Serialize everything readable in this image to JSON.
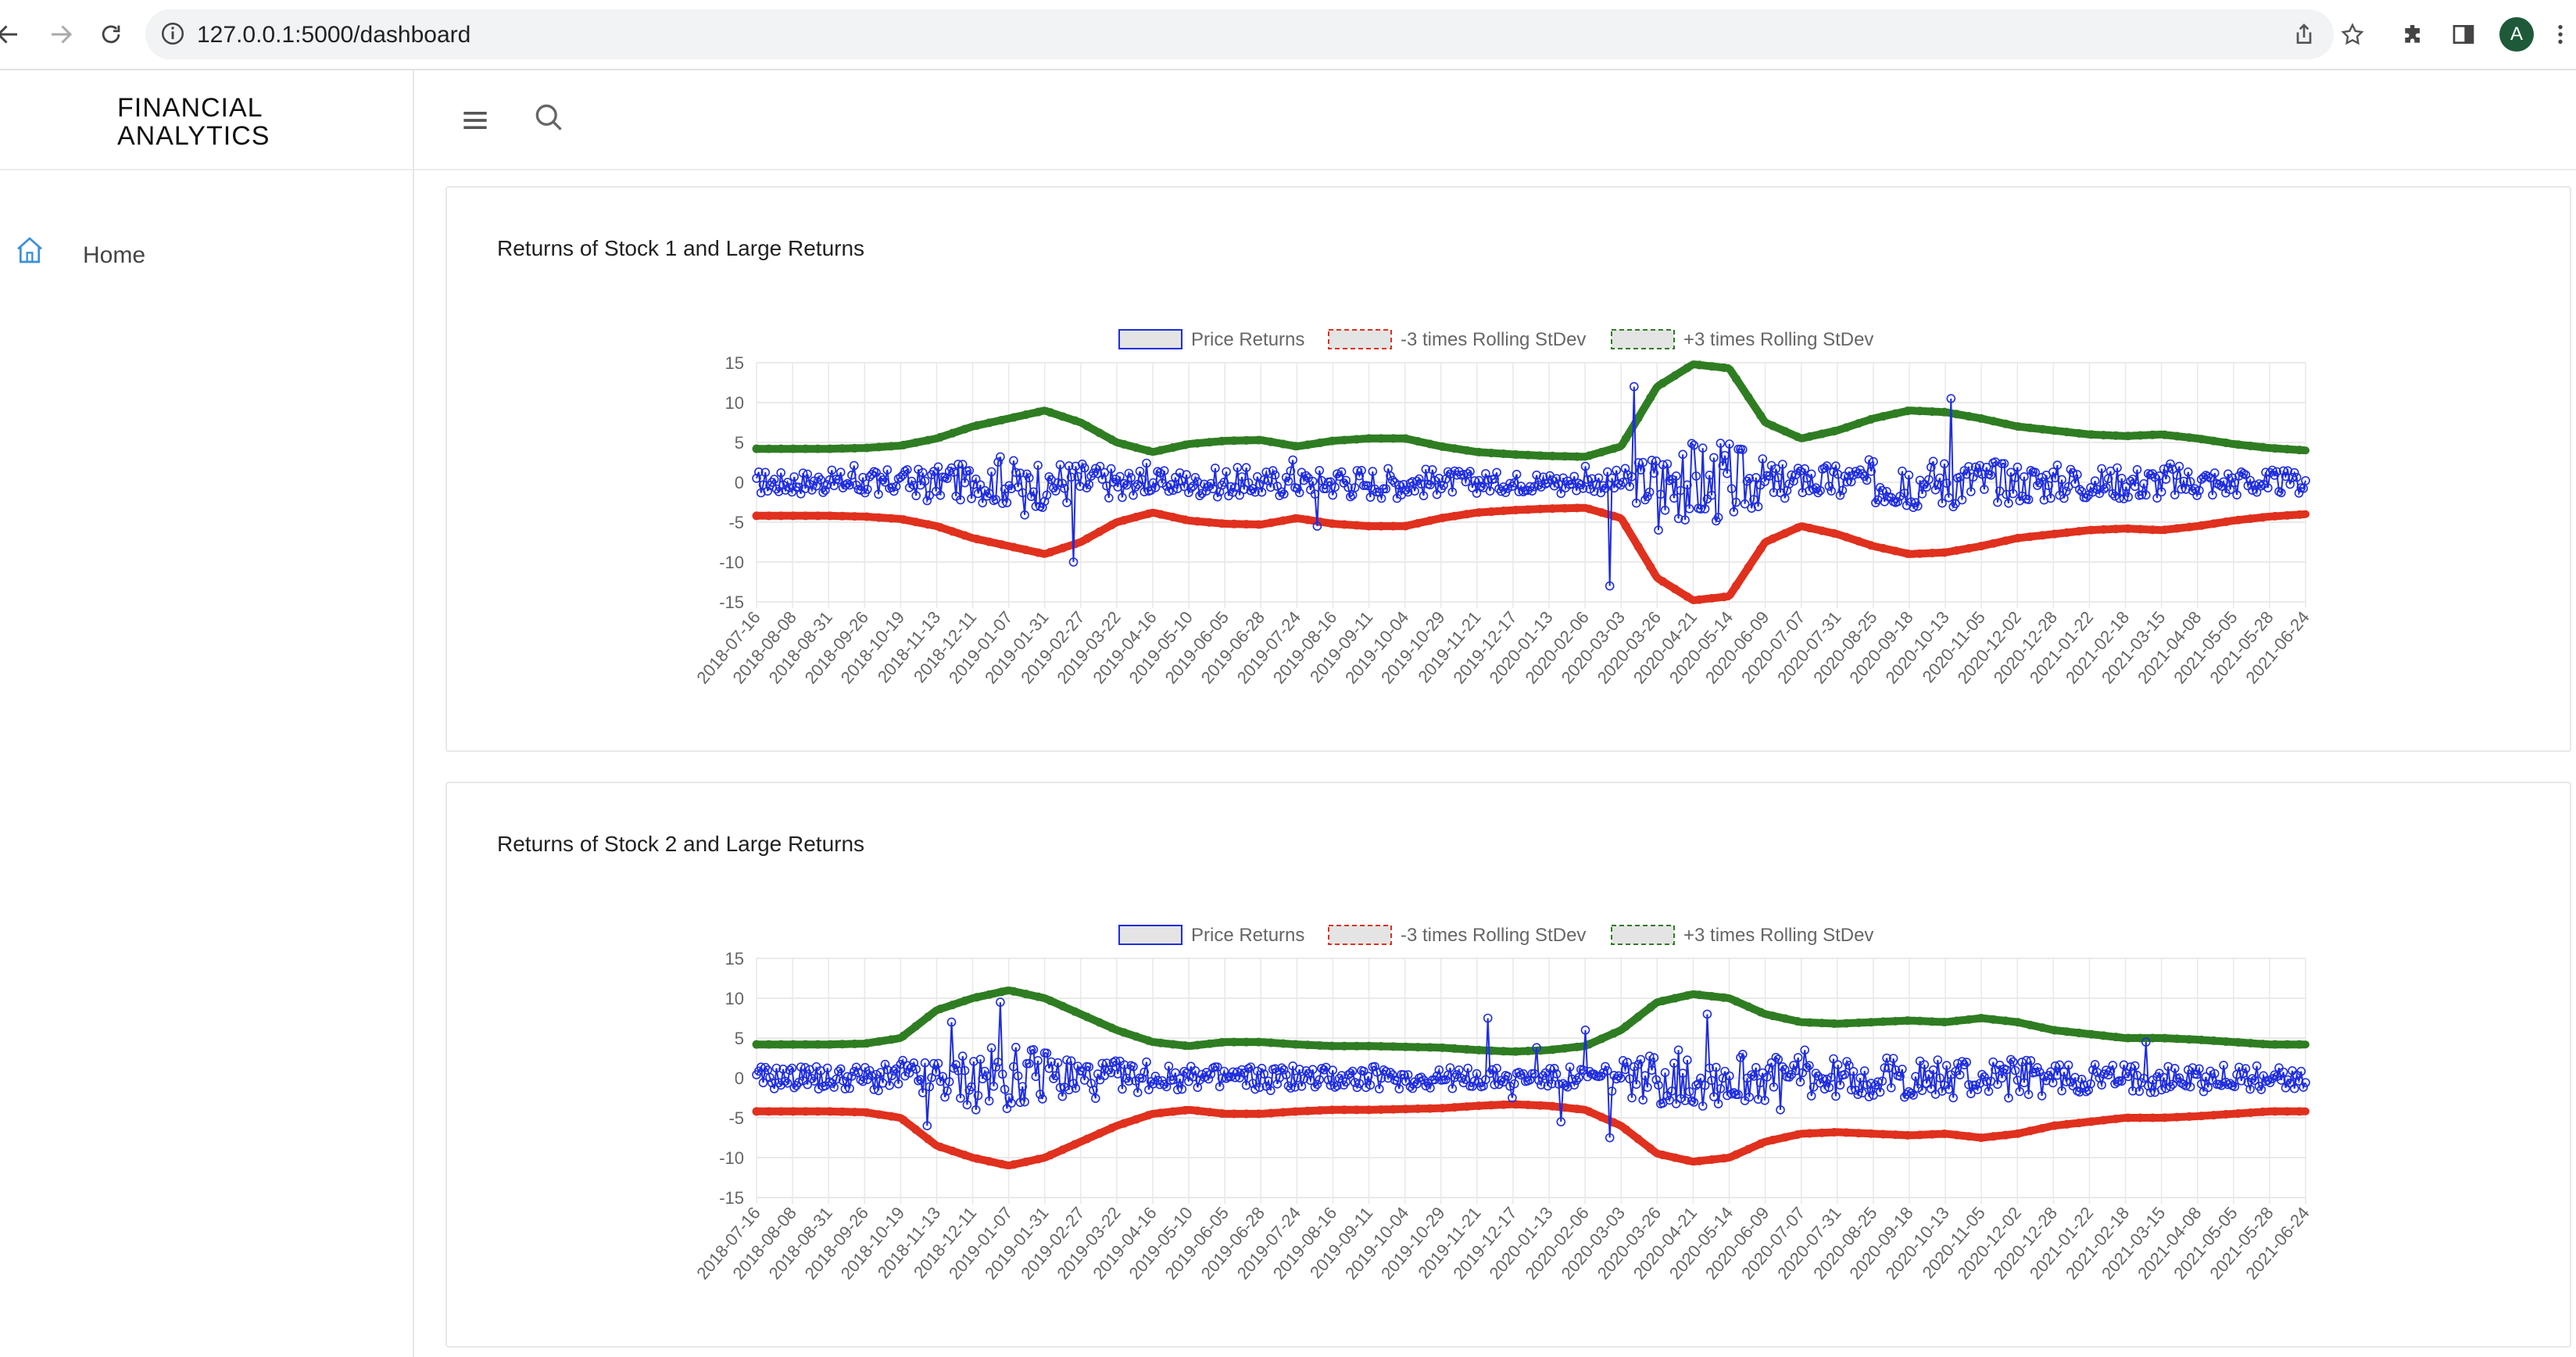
{
  "browser": {
    "url": "127.0.0.1:5000/dashboard",
    "avatar_letter": "A"
  },
  "sidebar": {
    "brand_line1": "FINANCIAL",
    "brand_line2": "ANALYTICS",
    "items": [
      {
        "label": "Home",
        "icon": "home-icon"
      }
    ]
  },
  "topbar": {
    "menu_icon": "menu-icon",
    "search_icon": "search-icon"
  },
  "colors": {
    "returns": "#1f2de0",
    "lower_band": "#e0301e",
    "upper_band": "#2f7d22",
    "accent": "#3a8fd8"
  },
  "legend": {
    "price_returns": "Price Returns",
    "lower": "-3 times Rolling StDev",
    "upper": "+3 times Rolling StDev"
  },
  "chart_data": [
    {
      "type": "line",
      "title": "Returns of Stock 1 and Large Returns",
      "ylim": [
        -15,
        15
      ],
      "yticks": [
        15,
        10,
        5,
        0,
        -5,
        -10,
        -15
      ],
      "x_tick_labels": [
        "2018-07-16",
        "2018-08-08",
        "2018-08-31",
        "2018-09-26",
        "2018-10-19",
        "2018-11-13",
        "2018-12-11",
        "2019-01-07",
        "2019-01-31",
        "2019-02-27",
        "2019-03-22",
        "2019-04-16",
        "2019-05-10",
        "2019-06-05",
        "2019-06-28",
        "2019-07-24",
        "2019-08-16",
        "2019-09-11",
        "2019-10-04",
        "2019-10-29",
        "2019-11-21",
        "2019-12-17",
        "2020-01-13",
        "2020-02-06",
        "2020-03-03",
        "2020-03-26",
        "2020-04-21",
        "2020-05-14",
        "2020-06-09",
        "2020-07-07",
        "2020-07-31",
        "2020-08-25",
        "2020-09-18",
        "2020-10-13",
        "2020-11-05",
        "2020-12-02",
        "2020-12-28",
        "2021-01-22",
        "2021-02-18",
        "2021-03-15",
        "2021-04-08",
        "2021-05-05",
        "2021-05-28",
        "2021-06-24"
      ],
      "grid": true,
      "legend_position": "top-center",
      "upper_band_profile": [
        4.2,
        4.2,
        4.2,
        4.3,
        4.6,
        5.5,
        7.0,
        8.0,
        9.0,
        7.5,
        5.0,
        3.8,
        4.8,
        5.2,
        5.3,
        4.5,
        5.2,
        5.5,
        5.5,
        4.5,
        3.8,
        3.5,
        3.3,
        3.2,
        4.5,
        12.0,
        14.8,
        14.3,
        7.5,
        5.5,
        6.5,
        8.0,
        9.0,
        8.8,
        8.0,
        7.0,
        6.5,
        6.0,
        5.8,
        6.0,
        5.5,
        4.8,
        4.3,
        4.0
      ],
      "series": [
        {
          "name": "Price Returns",
          "values": [
            0.5,
            1.2,
            -0.8,
            0.3,
            2.1,
            -1.5,
            0.9,
            -2.3,
            1.8,
            0.4,
            -0.6,
            3.2,
            -4.1,
            0.7,
            -10,
            1.1,
            -1.9,
            2.4,
            -0.3,
            0.6,
            -1.2,
            1.5,
            -0.9,
            0.2,
            2.8,
            -5.5,
            1.3,
            -0.4,
            0.8,
            -1.1,
            0.5,
            1.0,
            -0.7,
            0.3,
            -0.5,
            0.9,
            -1.4,
            2.0,
            -13,
            12,
            -6,
            3.5,
            -2.1,
            1.2,
            -0.8,
            0.6,
            -1.3,
            1.7,
            -0.5,
            0.9,
            -2.2,
            1.4,
            -0.6,
            10.5,
            -3.2,
            1.9,
            -1.1,
            0.7,
            -0.4,
            1.2,
            -0.9,
            0.5,
            -1.6,
            2.3,
            -0.8,
            0.4,
            -0.3,
            1.1,
            -0.7,
            0.6
          ]
        },
        {
          "name": "-3 times Rolling StDev"
        },
        {
          "name": "+3 times Rolling StDev"
        }
      ]
    },
    {
      "type": "line",
      "title": "Returns of Stock 2 and Large Returns",
      "ylim": [
        -15,
        15
      ],
      "yticks": [
        15,
        10,
        5,
        0,
        -5,
        -10,
        -15
      ],
      "x_tick_labels": [
        "2018-07-16",
        "2018-08-08",
        "2018-08-31",
        "2018-09-26",
        "2018-10-19",
        "2018-11-13",
        "2018-12-11",
        "2019-01-07",
        "2019-01-31",
        "2019-02-27",
        "2019-03-22",
        "2019-04-16",
        "2019-05-10",
        "2019-06-05",
        "2019-06-28",
        "2019-07-24",
        "2019-08-16",
        "2019-09-11",
        "2019-10-04",
        "2019-10-29",
        "2019-11-21",
        "2019-12-17",
        "2020-01-13",
        "2020-02-06",
        "2020-03-03",
        "2020-03-26",
        "2020-04-21",
        "2020-05-14",
        "2020-06-09",
        "2020-07-07",
        "2020-07-31",
        "2020-08-25",
        "2020-09-18",
        "2020-10-13",
        "2020-11-05",
        "2020-12-02",
        "2020-12-28",
        "2021-01-22",
        "2021-02-18",
        "2021-03-15",
        "2021-04-08",
        "2021-05-05",
        "2021-05-28",
        "2021-06-24"
      ],
      "grid": true,
      "legend_position": "top-center",
      "upper_band_profile": [
        4.2,
        4.2,
        4.2,
        4.3,
        5.0,
        8.5,
        10.0,
        11.0,
        10.0,
        8.0,
        6.0,
        4.5,
        4.0,
        4.5,
        4.5,
        4.2,
        4.0,
        4.0,
        3.9,
        3.8,
        3.5,
        3.3,
        3.5,
        4.0,
        6.0,
        9.5,
        10.5,
        10.0,
        8.0,
        7.0,
        6.8,
        7.0,
        7.2,
        7.0,
        7.5,
        7.0,
        6.0,
        5.5,
        5.0,
        5.0,
        4.8,
        4.5,
        4.2,
        4.2
      ],
      "series": [
        {
          "name": "Price Returns",
          "values": [
            0.4,
            -0.9,
            1.3,
            -0.5,
            0.8,
            -1.6,
            2.2,
            -6,
            7,
            -4,
            9.5,
            -3,
            1.2,
            -0.7,
            0.5,
            -1.4,
            2.0,
            -0.3,
            0.9,
            -1.1,
            0.6,
            -0.4,
            1.5,
            -0.8,
            0.3,
            -1.2,
            0.7,
            -0.5,
            1.0,
            -0.6,
            7.5,
            -2.5,
            3.8,
            -5.5,
            6.0,
            -7.5,
            1.4,
            -0.9,
            0.6,
            8.0,
            -2.0,
            1.3,
            -4.0,
            3.5,
            -1.2,
            0.8,
            -0.5,
            1.1,
            -0.7,
            0.4,
            -0.9,
            1.6,
            -0.6,
            0.3,
            -1.0,
            0.7,
            -0.4,
            4.5,
            -1.1,
            0.5,
            -0.8,
            0.6,
            -0.3,
            0.9
          ]
        },
        {
          "name": "-3 times Rolling StDev"
        },
        {
          "name": "+3 times Rolling StDev"
        }
      ]
    }
  ]
}
